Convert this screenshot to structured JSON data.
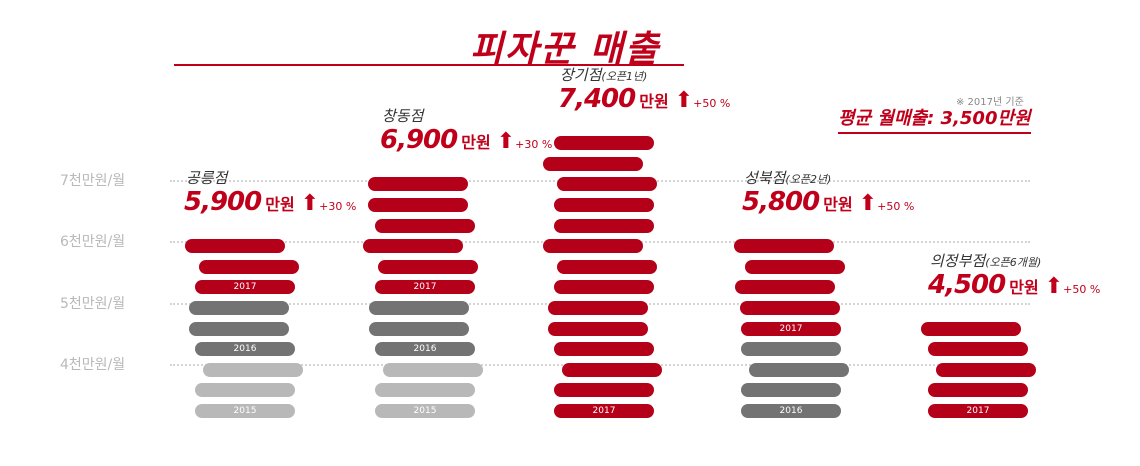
{
  "title": "피자꾼 매출",
  "note": "※ 2017년 기준",
  "average": "평균 월매출: 3,500만원",
  "chart_data": {
    "type": "bar",
    "y_tick_labels": [
      "7천만원/월",
      "6천만원/월",
      "5천만원/월",
      "4천만원/월"
    ],
    "year_colors": {
      "2017": "#b5001a",
      "2016": "#737373",
      "2015": "#b8b8b8"
    },
    "stores": [
      {
        "name": "공릉점",
        "sub": "",
        "sales": "5,900",
        "unit": "만원",
        "growth": "+30 %",
        "stack": [
          {
            "year": "2017",
            "count": 3
          },
          {
            "year": "2016",
            "count": 3
          },
          {
            "year": "2015",
            "count": 3
          }
        ]
      },
      {
        "name": "창동점",
        "sub": "",
        "sales": "6,900",
        "unit": "만원",
        "growth": "+30 %",
        "stack": [
          {
            "year": "2017",
            "count": 6
          },
          {
            "year": "2016",
            "count": 3
          },
          {
            "year": "2015",
            "count": 3
          }
        ]
      },
      {
        "name": "장기점",
        "sub": "(오픈1년)",
        "sales": "7,400",
        "unit": "만원",
        "growth": "+50 %",
        "stack": [
          {
            "year": "2017",
            "count": 14
          }
        ]
      },
      {
        "name": "성북점",
        "sub": "(오픈2년)",
        "sales": "5,800",
        "unit": "만원",
        "growth": "+50 %",
        "stack": [
          {
            "year": "2017",
            "count": 5
          },
          {
            "year": "2016",
            "count": 4
          }
        ]
      },
      {
        "name": "의정부점",
        "sub": "(오픈6개월)",
        "sales": "4,500",
        "unit": "만원",
        "growth": "+50 %",
        "stack": [
          {
            "year": "2017",
            "count": 5
          }
        ]
      }
    ]
  }
}
